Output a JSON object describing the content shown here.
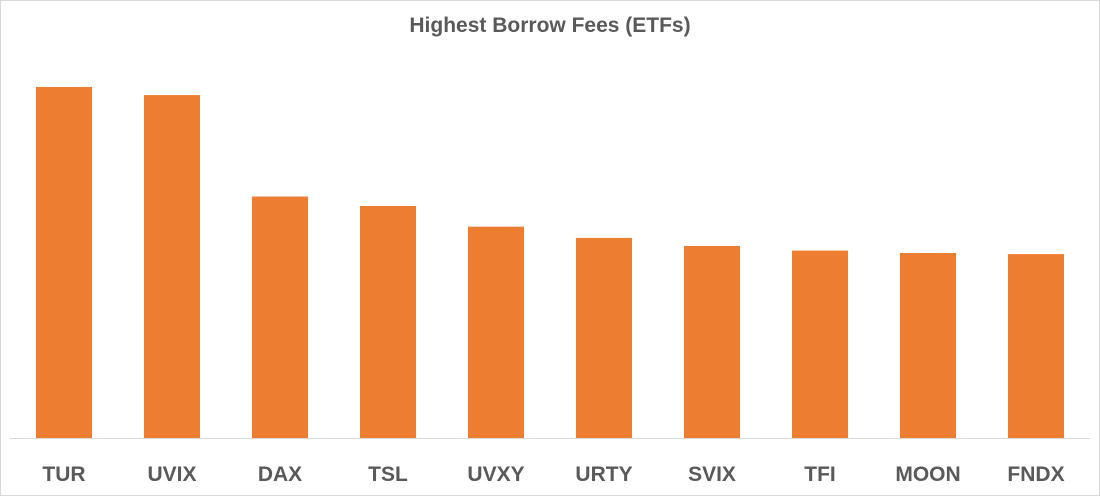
{
  "chart_data": {
    "type": "bar",
    "title": "Highest Borrow Fees (ETFs)",
    "categories": [
      "TUR",
      "UVIX",
      "DAX",
      "TSL",
      "UVXY",
      "URTY",
      "SVIX",
      "TFI",
      "MOON",
      "FNDX"
    ],
    "values": [
      100,
      97.7,
      68.8,
      66.1,
      60.2,
      57.0,
      54.7,
      53.4,
      52.7,
      52.4
    ],
    "ylim": [
      0,
      100
    ],
    "xlabel": "",
    "ylabel": "",
    "grid": false,
    "legend": "none",
    "bar_color": "#ED7D31",
    "axis_color": "#d9d9d9"
  }
}
